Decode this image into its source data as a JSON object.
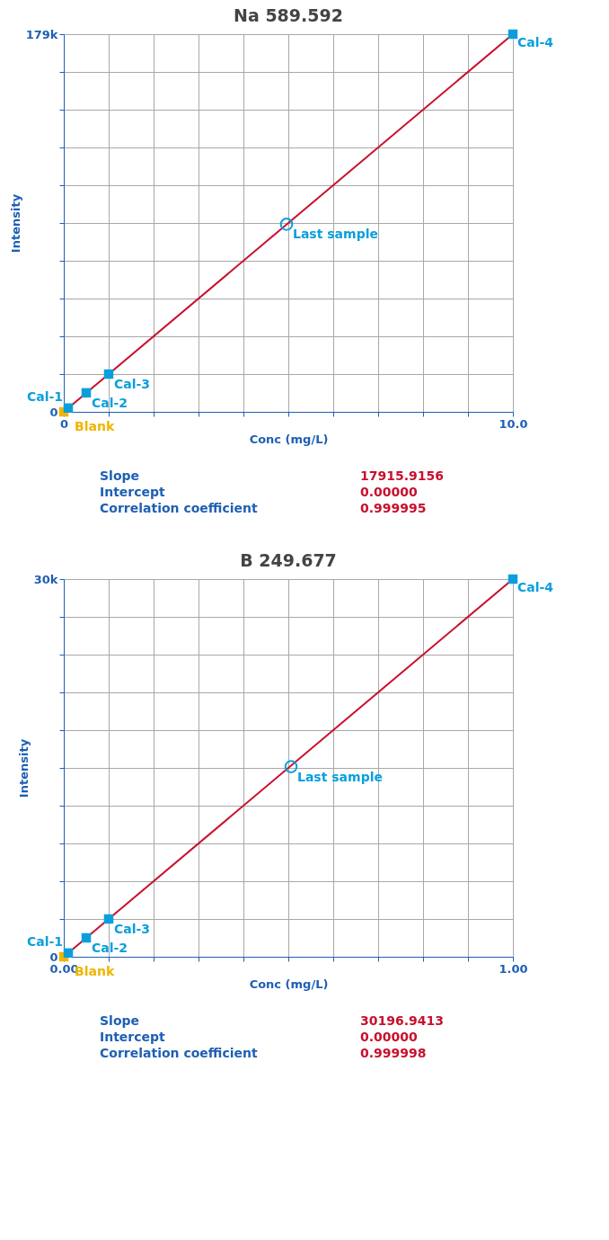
{
  "chart_data": [
    {
      "type": "scatter",
      "title": "Na 589.592",
      "xlabel": "Conc (mg/L)",
      "ylabel": "Intensity",
      "xlim": [
        0,
        10
      ],
      "ylim": [
        0,
        179000
      ],
      "xticks": [
        {
          "value": 0,
          "label": "0"
        },
        {
          "value": 1,
          "label": null
        },
        {
          "value": 2,
          "label": null
        },
        {
          "value": 3,
          "label": null
        },
        {
          "value": 4,
          "label": null
        },
        {
          "value": 5,
          "label": null
        },
        {
          "value": 6,
          "label": null
        },
        {
          "value": 7,
          "label": null
        },
        {
          "value": 8,
          "label": null
        },
        {
          "value": 9,
          "label": null
        },
        {
          "value": 10,
          "label": "10.0"
        }
      ],
      "yticks": [
        0,
        {
          "value": 17900,
          "label": null
        },
        {
          "value": 35800,
          "label": null
        },
        {
          "value": 53700,
          "label": null
        },
        {
          "value": 71600,
          "label": null
        },
        {
          "value": 89500,
          "label": null
        },
        {
          "value": 107400,
          "label": null
        },
        {
          "value": 125300,
          "label": null
        },
        {
          "value": 143200,
          "label": null
        },
        {
          "value": 161100,
          "label": null
        },
        {
          "value": 179000,
          "label": "179k"
        }
      ],
      "grid": true,
      "series": [
        {
          "type": "line",
          "color": "#c8102e",
          "line_style": "solid",
          "x": [
            0,
            10
          ],
          "values": [
            0,
            179000
          ]
        },
        {
          "color": "#f2b400",
          "marker": "square",
          "x": [
            0
          ],
          "values": [
            0
          ]
        },
        {
          "color": "#0a9fdc",
          "marker": "square",
          "x": [
            0.1,
            0.5,
            1,
            10
          ],
          "values": [
            1800,
            9000,
            17900,
            179000
          ]
        },
        {
          "color": "#0a9fdc",
          "marker": "circle",
          "x": [
            4.96
          ],
          "values": [
            88900
          ]
        }
      ],
      "annotations": [
        {
          "text": "Blank",
          "x": 0,
          "y": 0
        },
        {
          "text": "Cal-1",
          "x": 0.1,
          "y": 1800
        },
        {
          "text": "Cal-2",
          "x": 0.5,
          "y": 9000
        },
        {
          "text": "Cal-3",
          "x": 1,
          "y": 17900
        },
        {
          "text": "Cal-4",
          "x": 10,
          "y": 179000
        },
        {
          "text": "Last sample",
          "x": 4.96,
          "y": 88900
        },
        "Slope",
        "17915.9156",
        "Intercept",
        "0.00000",
        "Correlation coefficient",
        "0.999995"
      ]
    },
    {
      "type": "scatter",
      "title": "B 249.677",
      "xlabel": "Conc (mg/L)",
      "ylabel": "Intensity",
      "xlim": [
        0,
        1
      ],
      "ylim": [
        0,
        30000
      ],
      "xticks": [
        {
          "value": 0,
          "label": "0.00"
        },
        {
          "value": 0.1,
          "label": null
        },
        {
          "value": 0.2,
          "label": null
        },
        {
          "value": 0.3,
          "label": null
        },
        {
          "value": 0.4,
          "label": null
        },
        {
          "value": 0.5,
          "label": null
        },
        {
          "value": 0.6,
          "label": null
        },
        {
          "value": 0.7,
          "label": null
        },
        {
          "value": 0.8,
          "label": null
        },
        {
          "value": 0.9,
          "label": null
        },
        {
          "value": 1,
          "label": "1.00"
        }
      ],
      "yticks": [
        0,
        {
          "value": 3000,
          "label": null
        },
        {
          "value": 6000,
          "label": null
        },
        {
          "value": 9000,
          "label": null
        },
        {
          "value": 12000,
          "label": null
        },
        {
          "value": 15000,
          "label": null
        },
        {
          "value": 18000,
          "label": null
        },
        {
          "value": 21000,
          "label": null
        },
        {
          "value": 24000,
          "label": null
        },
        {
          "value": 27000,
          "label": null
        },
        {
          "value": 30000,
          "label": "30k"
        }
      ],
      "grid": true,
      "series": [
        {
          "type": "line",
          "color": "#c8102e",
          "line_style": "solid",
          "x": [
            0,
            1
          ],
          "values": [
            0,
            30000
          ]
        },
        {
          "color": "#f2b400",
          "marker": "square",
          "x": [
            0
          ],
          "values": [
            0
          ]
        },
        {
          "color": "#0a9fdc",
          "marker": "square",
          "x": [
            0.01,
            0.05,
            0.1,
            1
          ],
          "values": [
            300,
            1500,
            3000,
            30000
          ]
        },
        {
          "color": "#0a9fdc",
          "marker": "circle",
          "x": [
            0.506
          ],
          "values": [
            15100
          ]
        }
      ],
      "annotations": [
        {
          "text": "Blank",
          "x": 0,
          "y": 0
        },
        {
          "text": "Cal-1",
          "x": 0.01,
          "y": 300
        },
        {
          "text": "Cal-2",
          "x": 0.05,
          "y": 1500
        },
        {
          "text": "Cal-3",
          "x": 0.1,
          "y": 3000
        },
        {
          "text": "Cal-4",
          "x": 1,
          "y": 30000
        },
        {
          "text": "Last sample",
          "x": 0.506,
          "y": 15100
        },
        "Slope",
        "30196.9413",
        "Intercept",
        "0.00000",
        "Correlation coefficient",
        "0.999998"
      ]
    }
  ]
}
